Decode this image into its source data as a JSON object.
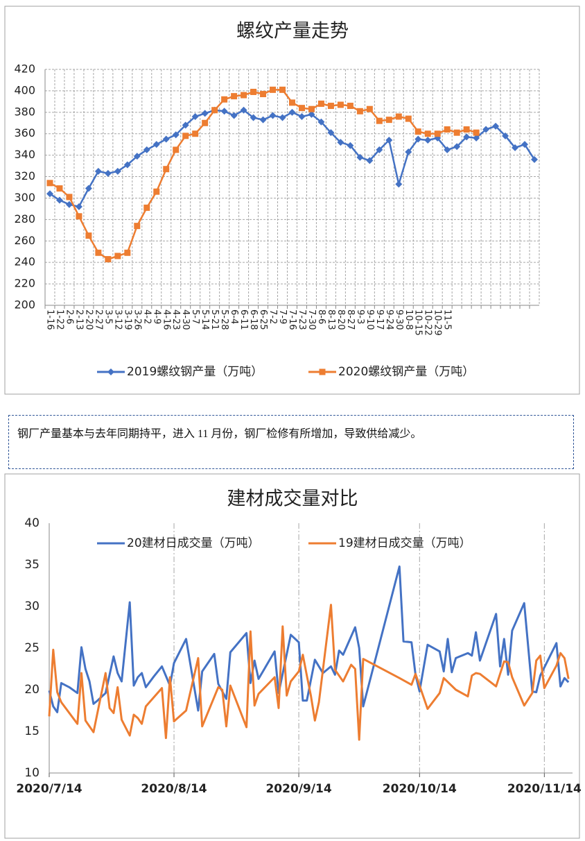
{
  "chart_data": [
    {
      "type": "line",
      "title": "螺纹产量走势",
      "categories": [
        "1-16",
        "1-22",
        "2-6",
        "2-13",
        "2-20",
        "2-27",
        "3-5",
        "3-12",
        "3-19",
        "3-26",
        "4-2",
        "4-9",
        "4-16",
        "4-23",
        "4-30",
        "5-7",
        "5-14",
        "5-21",
        "5-28",
        "6-4",
        "6-11",
        "6-18",
        "6-25",
        "7-2",
        "7-9",
        "7-16",
        "7-23",
        "7-30",
        "8-6",
        "8-13",
        "8-20",
        "8-27",
        "9-3",
        "9-10",
        "9-17",
        "9-24",
        "9-30",
        "10-8",
        "10-15",
        "10-22",
        "10-29",
        "11-5",
        null,
        null,
        null,
        null,
        null,
        null,
        null,
        null,
        null
      ],
      "series": [
        {
          "name": "2019螺纹钢产量（万吨）",
          "color": "#4472c4",
          "marker": "diamond",
          "values": [
            304,
            298,
            294,
            292,
            309,
            325,
            323,
            325,
            331,
            339,
            345,
            350,
            355,
            359,
            368,
            376,
            379,
            382,
            381,
            377,
            382,
            375,
            373,
            377,
            375,
            380,
            376,
            378,
            371,
            361,
            352,
            349,
            338,
            335,
            345,
            354,
            313,
            343,
            355,
            354,
            356,
            345,
            348,
            357,
            356,
            364,
            367,
            358,
            347,
            350,
            336
          ]
        },
        {
          "name": "2020螺纹钢产量（万吨）",
          "color": "#ed7d31",
          "marker": "square",
          "values": [
            314,
            309,
            301,
            283,
            265,
            249,
            243,
            246,
            249,
            274,
            291,
            306,
            327,
            345,
            358,
            360,
            370,
            382,
            392,
            395,
            396,
            399,
            397,
            401,
            401,
            389,
            384,
            383,
            388,
            386,
            387,
            386,
            381,
            383,
            372,
            373,
            376,
            374,
            362,
            360,
            360,
            364,
            361,
            364,
            361,
            null,
            null,
            null,
            null,
            null,
            null
          ]
        }
      ],
      "ylim": [
        200,
        420
      ],
      "yticks": [
        200,
        220,
        240,
        260,
        280,
        300,
        320,
        340,
        360,
        380,
        400,
        420
      ],
      "grid": "both",
      "legend": "bottom"
    },
    {
      "type": "line",
      "title": "建材成交量对比",
      "xlim": [
        "2020/7/14",
        "2020/11/21"
      ],
      "xticks": [
        "2020/7/14",
        "2020/8/14",
        "2020/9/14",
        "2020/10/14",
        "2020/11/14"
      ],
      "series": [
        {
          "name": "20建材日成交量（万吨）",
          "color": "#4472c4",
          "x": [
            "2020/7/14",
            "2020/7/15",
            "2020/7/16",
            "2020/7/17",
            "2020/7/19",
            "2020/7/21",
            "2020/7/22",
            "2020/7/23",
            "2020/7/24",
            "2020/7/25",
            "2020/7/26",
            "2020/7/28",
            "2020/7/30",
            "2020/7/31",
            "2020/8/1",
            "2020/8/3",
            "2020/8/4",
            "2020/8/5",
            "2020/8/6",
            "2020/8/7",
            "2020/8/9",
            "2020/8/11",
            "2020/8/13",
            "2020/8/14",
            "2020/8/17",
            "2020/8/20",
            "2020/8/21",
            "2020/8/24",
            "2020/8/25",
            "2020/8/27",
            "2020/8/28",
            "2020/9/1",
            "2020/9/2",
            "2020/9/3",
            "2020/9/4",
            "2020/9/8",
            "2020/9/9",
            "2020/9/12",
            "2020/9/14",
            "2020/9/15",
            "2020/9/16",
            "2020/9/18",
            "2020/9/20",
            "2020/9/22",
            "2020/9/23",
            "2020/9/24",
            "2020/9/25",
            "2020/9/28",
            "2020/9/29",
            "2020/9/30",
            "2020/10/9",
            "2020/10/10",
            "2020/10/12",
            "2020/10/13",
            "2020/10/14",
            "2020/10/16",
            "2020/10/19",
            "2020/10/20",
            "2020/10/21",
            "2020/10/22",
            "2020/10/23",
            "2020/10/26",
            "2020/10/27",
            "2020/10/28",
            "2020/10/29",
            "2020/11/2",
            "2020/11/3",
            "2020/11/4",
            "2020/11/5",
            "2020/11/6",
            "2020/11/9",
            "2020/11/11",
            "2020/11/12",
            "2020/11/13",
            "2020/11/17",
            "2020/11/18",
            "2020/11/19",
            "2020/11/20"
          ],
          "values": [
            19.9,
            18,
            17.3,
            20.8,
            20.3,
            19.6,
            25.1,
            22.5,
            21,
            18.3,
            18.7,
            19.6,
            24,
            22,
            21,
            30.5,
            20.5,
            21.5,
            22,
            20.3,
            21.6,
            22.8,
            20.5,
            23.2,
            26.1,
            17.5,
            22.2,
            24.3,
            20.7,
            18.9,
            24.5,
            26.8,
            20.8,
            23.5,
            21.3,
            24.6,
            19.6,
            26.6,
            25.7,
            18.7,
            18.7,
            23.6,
            22,
            22.8,
            21.8,
            24.7,
            24.2,
            27.5,
            25,
            18,
            34.8,
            25.8,
            25.7,
            21.8,
            19.8,
            25.4,
            24.6,
            22.2,
            26.1,
            22.1,
            23.8,
            24.4,
            24.1,
            26.9,
            23.5,
            29.1,
            22.8,
            26.1,
            21.8,
            27.1,
            30.4,
            19.8,
            19.7,
            21.7,
            25.6,
            20.4,
            21.4,
            20.9
          ]
        },
        {
          "name": "19建材日成交量（万吨）",
          "color": "#ed7d31",
          "x": [
            "2020/7/14",
            "2020/7/15",
            "2020/7/16",
            "2020/7/17",
            "2020/7/21",
            "2020/7/22",
            "2020/7/23",
            "2020/7/25",
            "2020/7/28",
            "2020/7/29",
            "2020/7/30",
            "2020/7/31",
            "2020/8/1",
            "2020/8/3",
            "2020/8/4",
            "2020/8/5",
            "2020/8/6",
            "2020/8/7",
            "2020/8/11",
            "2020/8/12",
            "2020/8/13",
            "2020/8/14",
            "2020/8/17",
            "2020/8/20",
            "2020/8/21",
            "2020/8/25",
            "2020/8/26",
            "2020/8/27",
            "2020/8/28",
            "2020/9/1",
            "2020/9/2",
            "2020/9/3",
            "2020/9/4",
            "2020/9/8",
            "2020/9/9",
            "2020/9/10",
            "2020/9/11",
            "2020/9/12",
            "2020/9/14",
            "2020/9/15",
            "2020/9/16",
            "2020/9/17",
            "2020/9/18",
            "2020/9/19",
            "2020/9/22",
            "2020/9/23",
            "2020/9/25",
            "2020/9/27",
            "2020/9/28",
            "2020/9/29",
            "2020/9/30",
            "2020/10/9",
            "2020/10/12",
            "2020/10/13",
            "2020/10/16",
            "2020/10/19",
            "2020/10/20",
            "2020/10/23",
            "2020/10/26",
            "2020/10/27",
            "2020/10/28",
            "2020/10/29",
            "2020/11/2",
            "2020/11/4",
            "2020/11/5",
            "2020/11/6",
            "2020/11/9",
            "2020/11/11",
            "2020/11/12",
            "2020/11/13",
            "2020/11/14",
            "2020/11/17",
            "2020/11/18",
            "2020/11/19",
            "2020/11/20"
          ],
          "values": [
            16.8,
            24.8,
            19.7,
            18.5,
            15.9,
            22,
            16.3,
            14.9,
            22,
            17.8,
            17.2,
            20.3,
            16.4,
            14.5,
            17,
            16.6,
            15.9,
            18,
            20.2,
            14.2,
            21.5,
            16.2,
            17.5,
            23.8,
            15.6,
            20.3,
            20,
            15.6,
            20.5,
            15.5,
            27,
            18.1,
            19.5,
            21.5,
            17.8,
            27.6,
            19.3,
            21,
            22.2,
            24.2,
            21.7,
            19.3,
            16.3,
            18.5,
            30.2,
            22.4,
            21,
            23,
            22.5,
            14,
            23.7,
            21.4,
            20.6,
            21.9,
            17.7,
            19.6,
            21.4,
            20,
            19.2,
            21.7,
            22,
            21.9,
            20.4,
            23.4,
            23.3,
            21.5,
            18.1,
            19.6,
            23.5,
            24.1,
            20.2,
            22.9,
            24.4,
            23.8,
            21.3
          ]
        }
      ],
      "ylim": [
        10,
        40
      ],
      "yticks": [
        10,
        15,
        20,
        25,
        30,
        35,
        40
      ],
      "grid": "x",
      "legend": "top"
    }
  ],
  "text_block": "钢厂产量基本与去年同期持平，进入 11 月份，钢厂检修有所增加，导致供给减少。"
}
